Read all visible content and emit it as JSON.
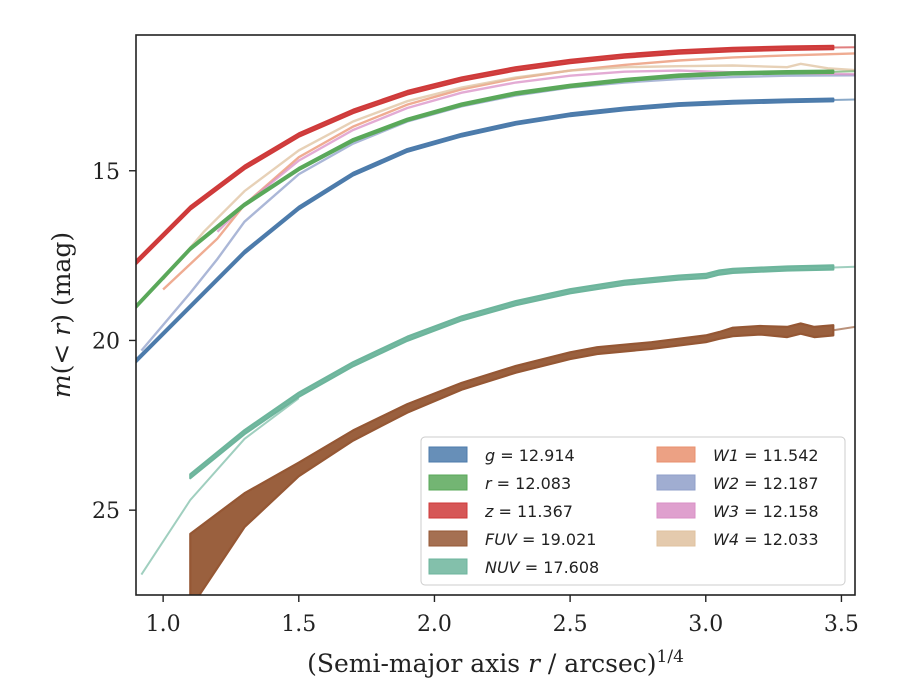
{
  "chart_data": {
    "type": "line",
    "xlabel": "(Semi-major axis r / arcsec)^{1/4}",
    "ylabel": "m(< r) (mag)",
    "xlim": [
      0.9,
      3.55
    ],
    "ylim": [
      27.5,
      11.0
    ],
    "y_inverted": true,
    "xticks": [
      "1.0",
      "1.5",
      "2.0",
      "2.5",
      "3.0",
      "3.5"
    ],
    "yticks": [
      "15",
      "20",
      "25"
    ],
    "grid": false,
    "legend_position": "lower-right",
    "series": [
      {
        "key": "g",
        "legend": "g = 12.914",
        "color": "#4c7bab",
        "style": "band",
        "band_width": 0.08,
        "x": [
          0.9,
          1.1,
          1.3,
          1.5,
          1.7,
          1.9,
          2.1,
          2.3,
          2.5,
          2.7,
          2.9,
          3.1,
          3.3,
          3.47
        ],
        "y": [
          20.6,
          19.0,
          17.4,
          16.1,
          15.1,
          14.4,
          13.95,
          13.6,
          13.35,
          13.18,
          13.05,
          12.98,
          12.94,
          12.914
        ],
        "tail": {
          "x": [
            3.47,
            3.55
          ],
          "y": [
            12.914,
            12.9
          ]
        }
      },
      {
        "key": "r",
        "legend": "r = 12.083",
        "color": "#5aa85a",
        "style": "band",
        "band_width": 0.07,
        "x": [
          0.9,
          1.1,
          1.3,
          1.5,
          1.7,
          1.9,
          2.1,
          2.3,
          2.5,
          2.7,
          2.9,
          3.1,
          3.3,
          3.47
        ],
        "y": [
          19.0,
          17.3,
          16.0,
          14.95,
          14.1,
          13.5,
          13.05,
          12.72,
          12.5,
          12.33,
          12.2,
          12.13,
          12.1,
          12.083
        ],
        "tail": {
          "x": [
            3.47,
            3.55
          ],
          "y": [
            12.083,
            12.07
          ]
        }
      },
      {
        "key": "z",
        "legend": "z = 11.367",
        "color": "#cf3a3a",
        "style": "band",
        "band_width": 0.1,
        "x": [
          0.9,
          1.1,
          1.3,
          1.5,
          1.7,
          1.9,
          2.1,
          2.3,
          2.5,
          2.7,
          2.9,
          3.1,
          3.3,
          3.47
        ],
        "y": [
          17.7,
          16.1,
          14.9,
          13.95,
          13.25,
          12.7,
          12.3,
          12.0,
          11.78,
          11.62,
          11.5,
          11.43,
          11.39,
          11.367
        ],
        "tail": {
          "x": [
            3.47,
            3.55
          ],
          "y": [
            11.367,
            11.36
          ]
        }
      },
      {
        "key": "FUV",
        "legend": "FUV = 19.021",
        "color": "#955734",
        "style": "band_var",
        "x": [
          1.1,
          1.3,
          1.5,
          1.7,
          1.9,
          2.1,
          2.3,
          2.5,
          2.6,
          2.8,
          3.0,
          3.05,
          3.1,
          3.2,
          3.3,
          3.35,
          3.4,
          3.47
        ],
        "y": [
          26.8,
          25.0,
          23.8,
          22.8,
          22.0,
          21.35,
          20.85,
          20.45,
          20.3,
          20.15,
          19.95,
          19.85,
          19.75,
          19.7,
          19.75,
          19.65,
          19.75,
          19.7
        ],
        "w": [
          2.2,
          1.0,
          0.4,
          0.3,
          0.25,
          0.2,
          0.2,
          0.2,
          0.2,
          0.2,
          0.2,
          0.2,
          0.25,
          0.25,
          0.3,
          0.3,
          0.3,
          0.3
        ],
        "tail": {
          "x": [
            3.47,
            3.55
          ],
          "y": [
            19.7,
            19.6
          ]
        }
      },
      {
        "key": "NUV",
        "legend": "NUV = 17.608",
        "color": "#6db59c",
        "style": "band",
        "band_width": 0.12,
        "x": [
          1.1,
          1.3,
          1.5,
          1.7,
          1.9,
          2.1,
          2.3,
          2.5,
          2.7,
          2.9,
          3.0,
          3.05,
          3.1,
          3.3,
          3.47
        ],
        "y": [
          24.0,
          22.7,
          21.6,
          20.7,
          19.95,
          19.35,
          18.9,
          18.55,
          18.3,
          18.15,
          18.1,
          18.0,
          17.95,
          17.88,
          17.85
        ],
        "tail": {
          "x": [
            0.92,
            1.1,
            1.3,
            1.5
          ],
          "y": [
            26.9,
            24.7,
            22.9,
            21.7
          ]
        },
        "tail_end": {
          "x": [
            3.47,
            3.55
          ],
          "y": [
            17.85,
            17.83
          ]
        }
      },
      {
        "key": "W1",
        "legend": "W1 = 11.542",
        "color": "#e9906e",
        "style": "line",
        "x": [
          1.0,
          1.2,
          1.3,
          1.5,
          1.7,
          1.9,
          2.1,
          2.3,
          2.5,
          2.7,
          2.9,
          3.1,
          3.3,
          3.55
        ],
        "y": [
          18.5,
          17.0,
          16.0,
          14.6,
          13.7,
          13.05,
          12.6,
          12.28,
          12.05,
          11.88,
          11.75,
          11.66,
          11.6,
          11.542
        ]
      },
      {
        "key": "W2",
        "legend": "W2 = 12.187",
        "color": "#8f9fc9",
        "style": "line",
        "x": [
          0.92,
          1.1,
          1.2,
          1.3,
          1.5,
          1.7,
          1.9,
          2.1,
          2.3,
          2.5,
          2.7,
          2.9,
          3.1,
          3.3,
          3.55
        ],
        "y": [
          20.3,
          18.6,
          17.6,
          16.5,
          15.1,
          14.2,
          13.55,
          13.1,
          12.78,
          12.55,
          12.4,
          12.3,
          12.24,
          12.2,
          12.187
        ]
      },
      {
        "key": "W3",
        "legend": "W3 = 12.158",
        "color": "#d98fc6",
        "style": "line",
        "x": [
          1.2,
          1.3,
          1.5,
          1.7,
          1.9,
          2.1,
          2.3,
          2.5,
          2.7,
          2.9,
          3.1,
          3.3,
          3.55
        ],
        "y": [
          16.8,
          16.0,
          14.7,
          13.8,
          13.15,
          12.7,
          12.4,
          12.2,
          12.08,
          12.05,
          12.1,
          12.12,
          12.158
        ]
      },
      {
        "key": "W4",
        "legend": "W4 = 12.033",
        "color": "#dfc19f",
        "style": "line",
        "x": [
          1.0,
          1.15,
          1.3,
          1.5,
          1.7,
          1.9,
          2.1,
          2.3,
          2.5,
          2.7,
          2.9,
          3.1,
          3.3,
          3.35,
          3.45,
          3.55
        ],
        "y": [
          18.2,
          16.8,
          15.6,
          14.4,
          13.55,
          12.95,
          12.55,
          12.25,
          12.05,
          11.95,
          11.92,
          11.9,
          11.95,
          11.85,
          11.98,
          12.033
        ]
      }
    ],
    "legend_columns": [
      [
        "g",
        "r",
        "z",
        "FUV",
        "NUV"
      ],
      [
        "W1",
        "W2",
        "W3",
        "W4"
      ]
    ]
  }
}
